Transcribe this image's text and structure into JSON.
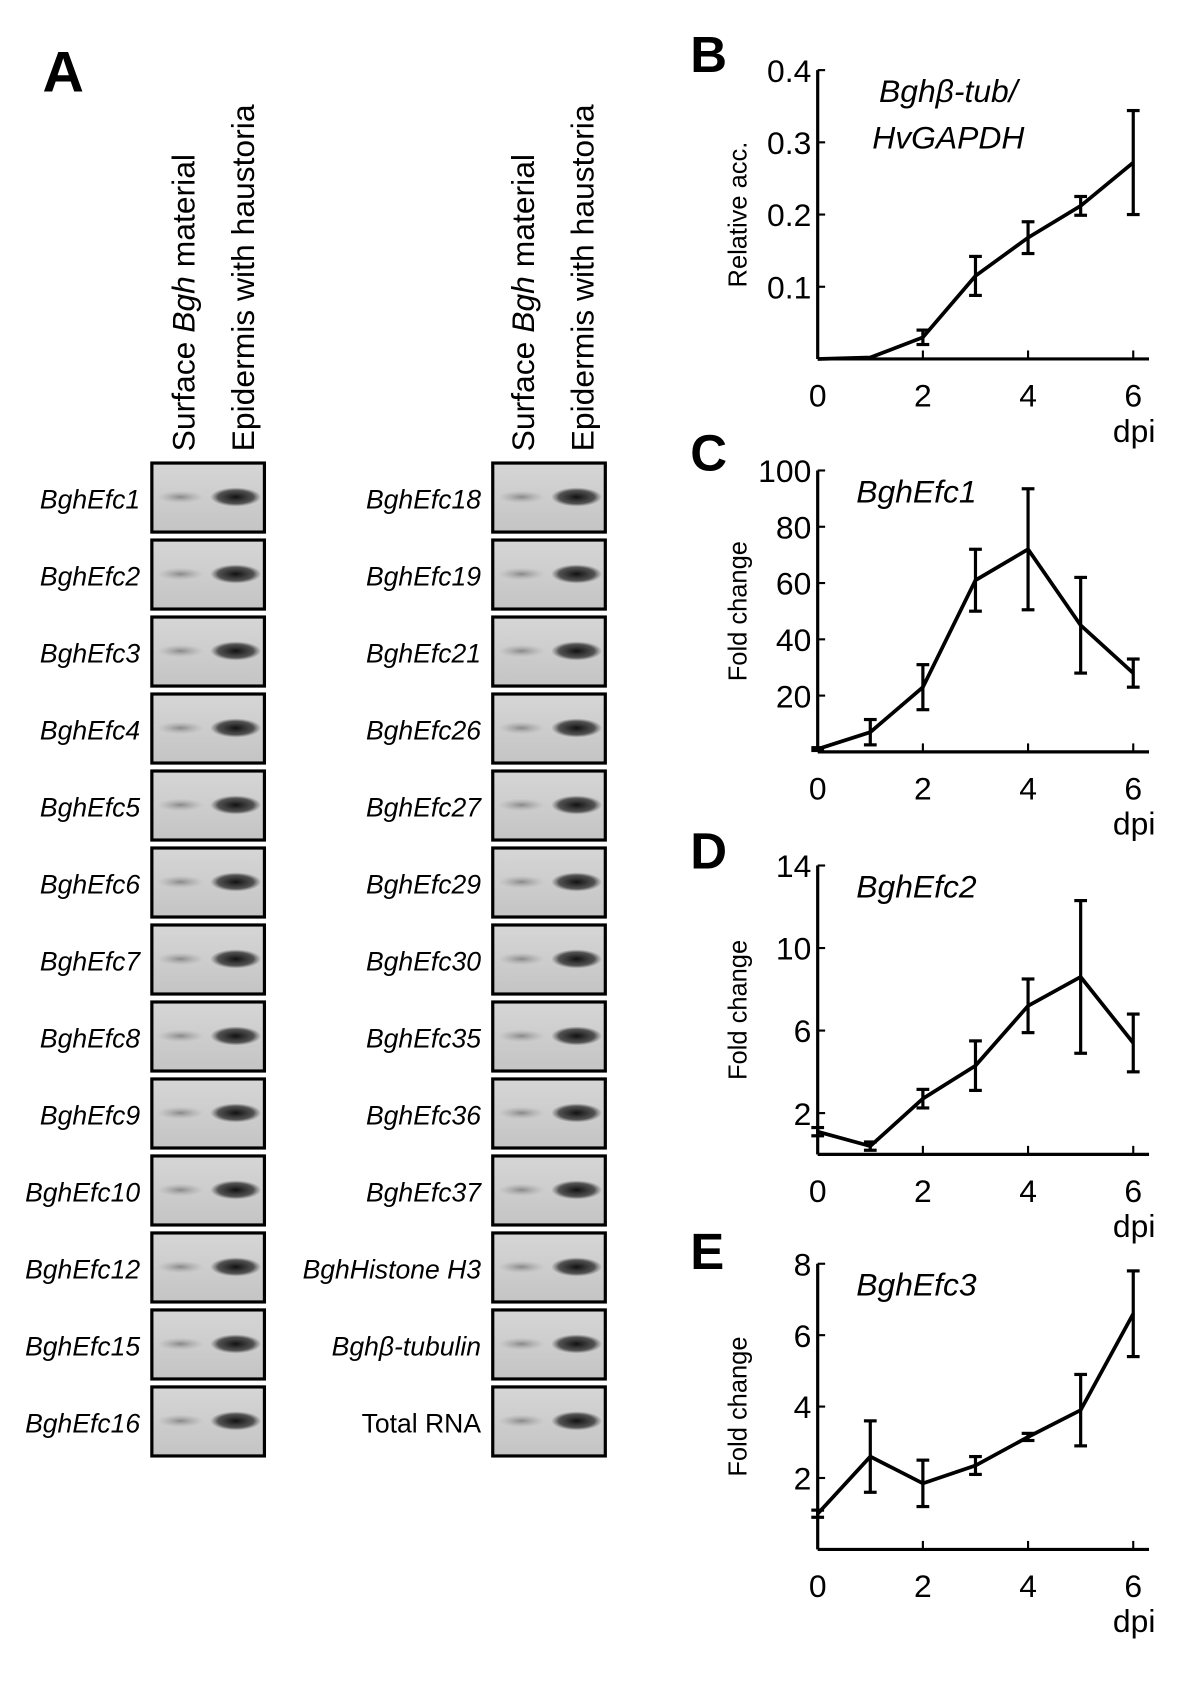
{
  "gel": {
    "panel": "A",
    "col1": [
      "Surface ",
      "Bgh",
      " material"
    ],
    "col2": "Epidermis with haustoria",
    "left": [
      {
        "label": "BghEfc1",
        "italic": true
      },
      {
        "label": "BghEfc2",
        "italic": true
      },
      {
        "label": "BghEfc3",
        "italic": true
      },
      {
        "label": "BghEfc4",
        "italic": true
      },
      {
        "label": "BghEfc5",
        "italic": true
      },
      {
        "label": "BghEfc6",
        "italic": true
      },
      {
        "label": "BghEfc7",
        "italic": true
      },
      {
        "label": "BghEfc8",
        "italic": true
      },
      {
        "label": "BghEfc9",
        "italic": true
      },
      {
        "label": "BghEfc10",
        "italic": true
      },
      {
        "label": "BghEfc12",
        "italic": true
      },
      {
        "label": "BghEfc15",
        "italic": true
      },
      {
        "label": "BghEfc16",
        "italic": true
      }
    ],
    "right": [
      {
        "label": "BghEfc18",
        "italic": true
      },
      {
        "label": "BghEfc19",
        "italic": true
      },
      {
        "label": "BghEfc21",
        "italic": true
      },
      {
        "label": "BghEfc26",
        "italic": true
      },
      {
        "label": "BghEfc27",
        "italic": true
      },
      {
        "label": "BghEfc29",
        "italic": true
      },
      {
        "label": "BghEfc30",
        "italic": true
      },
      {
        "label": "BghEfc35",
        "italic": true
      },
      {
        "label": "BghEfc36",
        "italic": true
      },
      {
        "label": "BghEfc37",
        "italic": true
      },
      {
        "label": "BghHistone H3",
        "italic": true
      },
      {
        "label": "Bghβ-tubulin",
        "italic": true
      },
      {
        "label": "Total RNA",
        "italic": false
      }
    ]
  },
  "chart_data": [
    {
      "type": "line",
      "panel": "B",
      "annotation": [
        "Bghβ-tub/",
        "HvGAPDH"
      ],
      "y_label": "Relative acc.",
      "x_label": "dpi",
      "x": [
        0,
        1,
        2,
        3,
        4,
        5,
        6
      ],
      "values": [
        0.0,
        0.002,
        0.03,
        0.115,
        0.168,
        0.212,
        0.272
      ],
      "errors": [
        0,
        0,
        0.01,
        0.027,
        0.022,
        0.013,
        0.072
      ],
      "color": "#000000",
      "xlim": [
        0,
        6.3
      ],
      "xticks": [
        0,
        2,
        4,
        6
      ],
      "ylim": [
        0,
        0.4
      ],
      "yticks": [
        0.1,
        0.2,
        0.3,
        0.4
      ]
    },
    {
      "type": "line",
      "panel": "C",
      "annotation": [
        "BghEfc1"
      ],
      "y_label": "Fold change",
      "x_label": "dpi",
      "x": [
        0,
        1,
        2,
        3,
        4,
        5,
        6
      ],
      "values": [
        1,
        7,
        23,
        61,
        72,
        45,
        28
      ],
      "errors": [
        0.5,
        4.5,
        8,
        11,
        21.5,
        17,
        5
      ],
      "color": "#000000",
      "xlim": [
        0,
        6.3
      ],
      "xticks": [
        0,
        2,
        4,
        6
      ],
      "ylim": [
        0,
        100
      ],
      "yticks": [
        20,
        40,
        60,
        80,
        100
      ]
    },
    {
      "type": "line",
      "panel": "D",
      "annotation": [
        "BghEfc2"
      ],
      "y_label": "Fold change",
      "x_label": "dpi",
      "x": [
        0,
        1,
        2,
        3,
        4,
        5,
        6
      ],
      "values": [
        1.1,
        0.4,
        2.7,
        4.3,
        7.2,
        8.6,
        5.4
      ],
      "errors": [
        0.2,
        0.2,
        0.45,
        1.2,
        1.3,
        3.7,
        1.4
      ],
      "color": "#000000",
      "xlim": [
        0,
        6.3
      ],
      "xticks": [
        0,
        2,
        4,
        6
      ],
      "ylim": [
        0,
        14
      ],
      "yticks": [
        2,
        6,
        10,
        14
      ]
    },
    {
      "type": "line",
      "panel": "E",
      "annotation": [
        "BghEfc3"
      ],
      "y_label": "Fold change",
      "x_label": "dpi",
      "x": [
        0,
        1,
        2,
        3,
        4,
        5,
        6
      ],
      "values": [
        1.0,
        2.6,
        1.85,
        2.35,
        3.15,
        3.9,
        6.6
      ],
      "errors": [
        0.1,
        1.0,
        0.65,
        0.25,
        0.1,
        1.0,
        1.2
      ],
      "color": "#000000",
      "xlim": [
        0,
        6.3
      ],
      "xticks": [
        0,
        2,
        4,
        6
      ],
      "ylim": [
        0,
        8
      ],
      "yticks": [
        2,
        4,
        6,
        8
      ]
    }
  ]
}
